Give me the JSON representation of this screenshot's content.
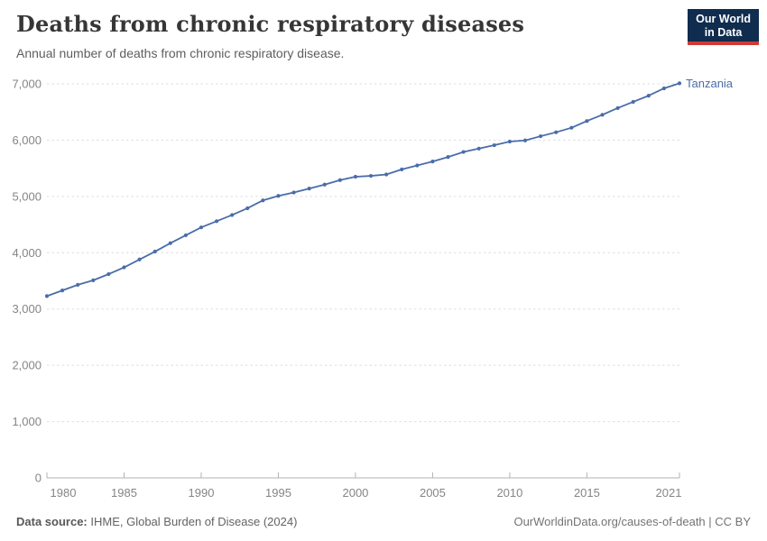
{
  "header": {
    "title": "Deaths from chronic respiratory diseases",
    "subtitle": "Annual number of deaths from chronic respiratory disease.",
    "logo": {
      "line1": "Our World",
      "line2": "in Data"
    }
  },
  "chart_data": {
    "type": "line",
    "title": "Deaths from chronic respiratory diseases",
    "subtitle": "Annual number of deaths from chronic respiratory disease.",
    "entity": "Tanzania",
    "years": [
      1980,
      1981,
      1982,
      1983,
      1984,
      1985,
      1986,
      1987,
      1988,
      1989,
      1990,
      1991,
      1992,
      1993,
      1994,
      1995,
      1996,
      1997,
      1998,
      1999,
      2000,
      2001,
      2002,
      2003,
      2004,
      2005,
      2006,
      2007,
      2008,
      2009,
      2010,
      2011,
      2012,
      2013,
      2014,
      2015,
      2016,
      2017,
      2018,
      2019,
      2020,
      2021
    ],
    "values": [
      3230,
      3330,
      3430,
      3510,
      3620,
      3740,
      3880,
      4020,
      4170,
      4310,
      4450,
      4560,
      4670,
      4790,
      4930,
      5010,
      5070,
      5140,
      5210,
      5290,
      5350,
      5365,
      5390,
      5480,
      5550,
      5620,
      5700,
      5790,
      5850,
      5910,
      5975,
      5995,
      6070,
      6140,
      6220,
      6340,
      6450,
      6570,
      6680,
      6790,
      6920,
      7010
    ],
    "ylim": [
      0,
      7000
    ],
    "yticks": [
      0,
      1000,
      2000,
      3000,
      4000,
      5000,
      6000,
      7000
    ],
    "ytick_labels": [
      "0",
      "1,000",
      "2,000",
      "3,000",
      "4,000",
      "5,000",
      "6,000",
      "7,000"
    ],
    "xticks": [
      1980,
      1985,
      1990,
      1995,
      2000,
      2005,
      2010,
      2015,
      2021
    ],
    "grid": true,
    "legend_position": "end-of-line label",
    "line_color": "#4a6da9",
    "grid_color": "#dedede",
    "axis_color": "#b3b3b3",
    "tick_label_color": "#858585"
  },
  "footer": {
    "source_label": "Data source:",
    "source_text": " IHME, Global Burden of Disease (2024)",
    "right_text": "OurWorldinData.org/causes-of-death | CC BY"
  },
  "colors": {
    "logo_bg": "#102c4e",
    "logo_red": "#cf3a34",
    "accent_line": "#4a6da9"
  }
}
